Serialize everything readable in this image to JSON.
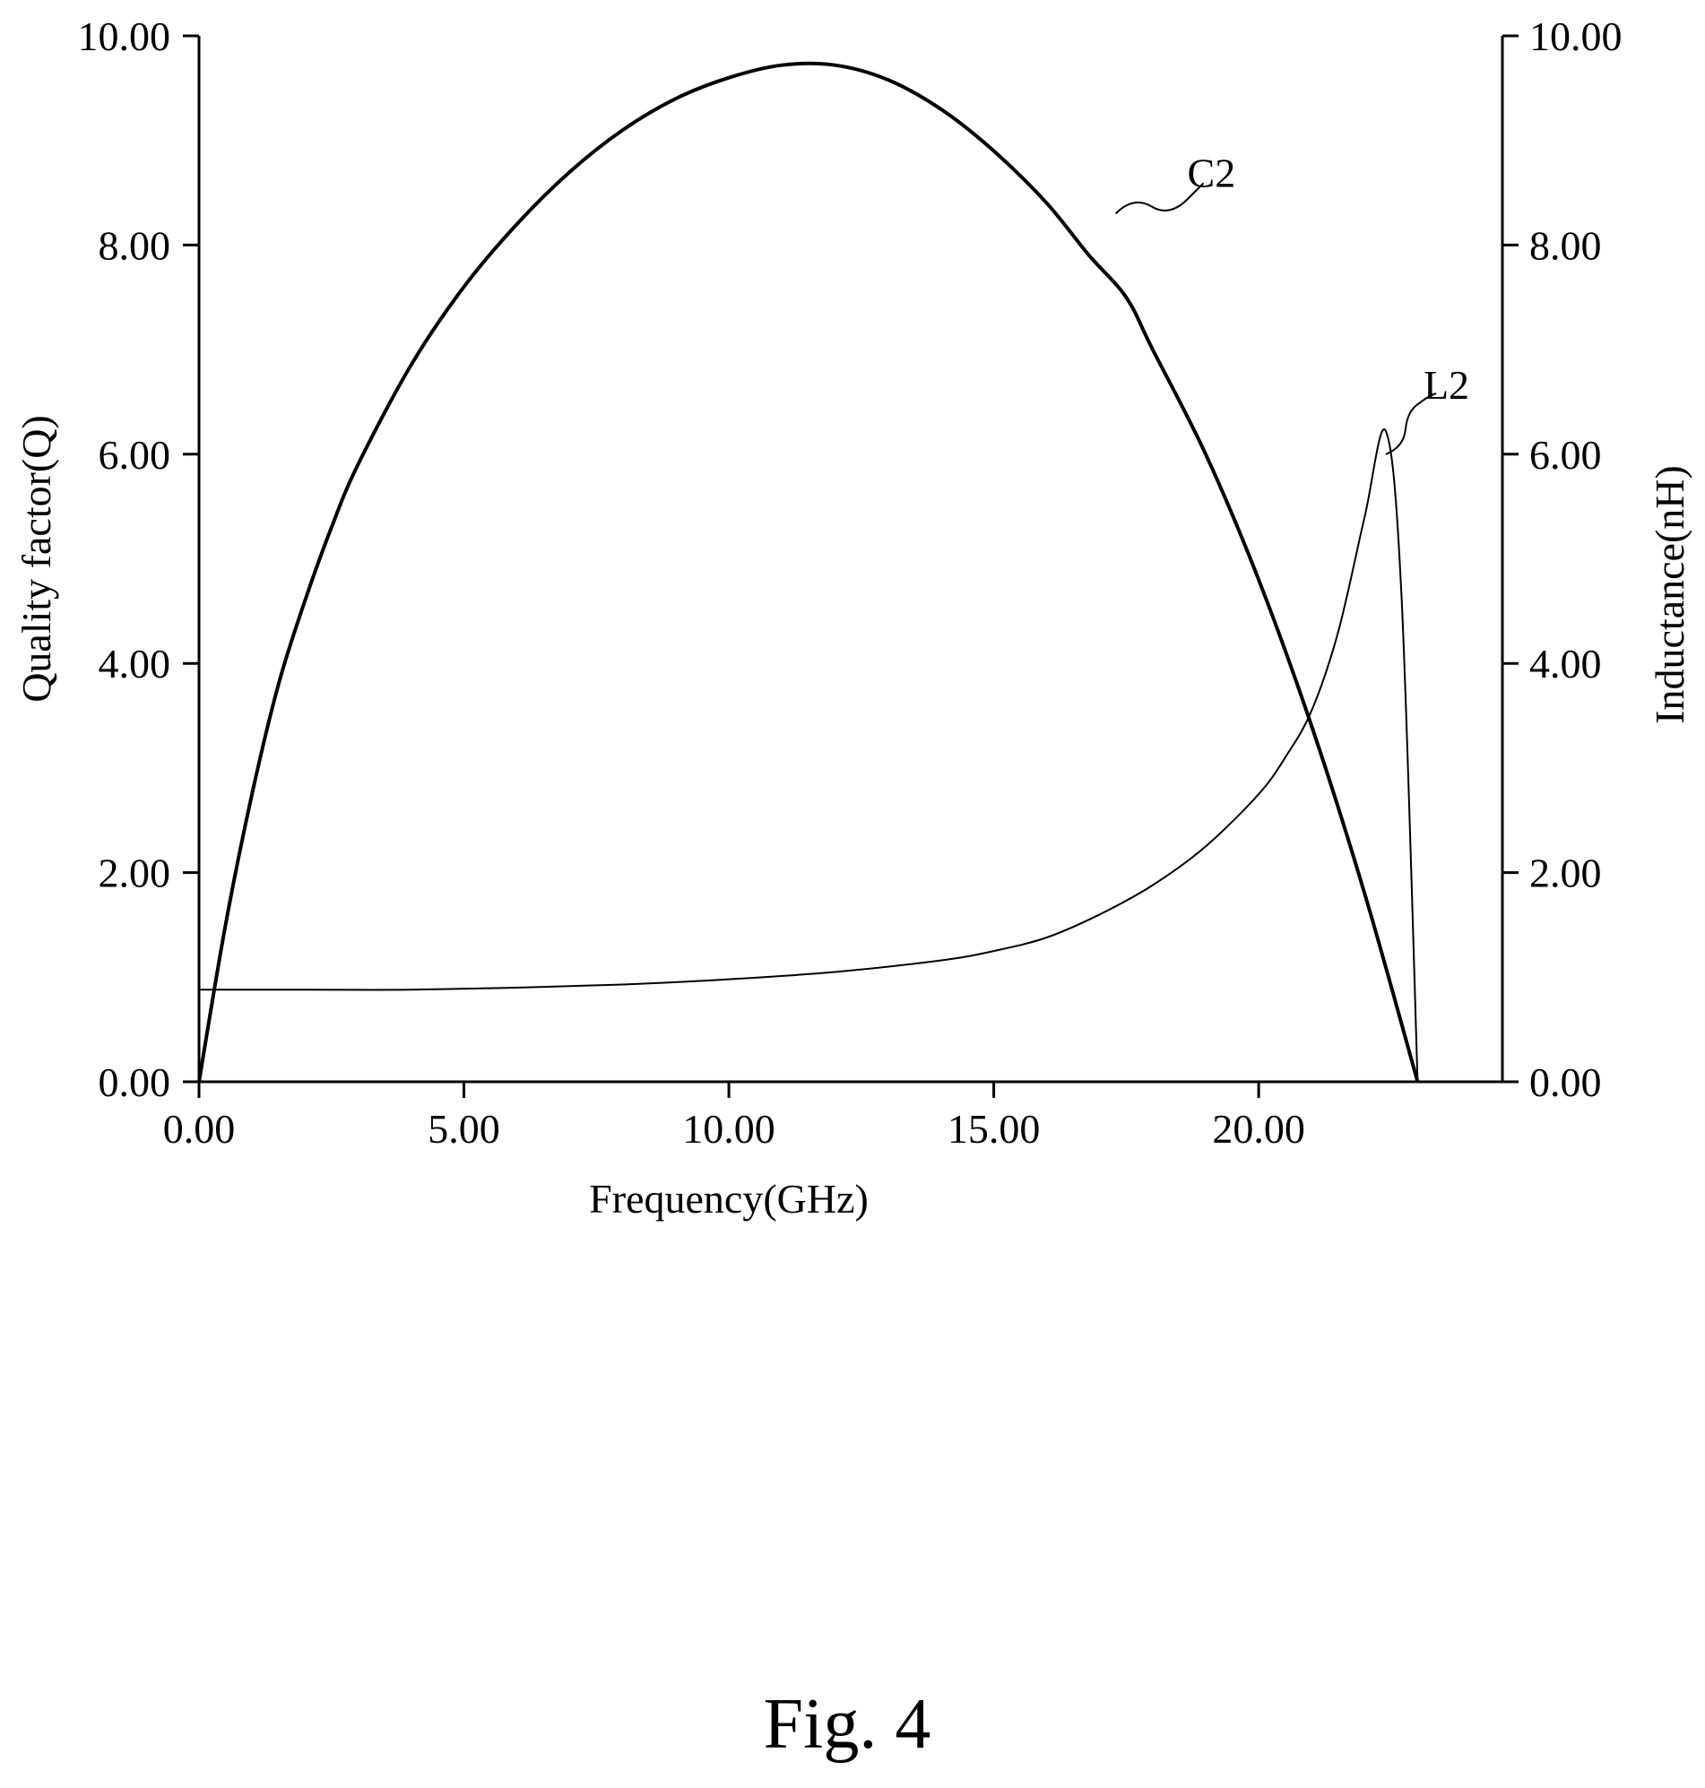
{
  "chart_data": {
    "type": "line",
    "xlabel": "Frequency(GHz)",
    "ylabel_left": "Quality factor(Q)",
    "ylabel_right": "Inductance(nH)",
    "xlim": [
      0,
      24.6
    ],
    "ylim_left": [
      0,
      10
    ],
    "ylim_right": [
      0,
      10
    ],
    "x_ticks": [
      "0.00",
      "5.00",
      "10.00",
      "15.00",
      "20.00"
    ],
    "y_ticks_left": [
      "0.00",
      "2.00",
      "4.00",
      "6.00",
      "8.00",
      "10.00"
    ],
    "y_ticks_right": [
      "0.00",
      "2.00",
      "4.00",
      "6.00",
      "8.00",
      "10.00"
    ],
    "grid": false,
    "legend": "none",
    "series": [
      {
        "name": "C2",
        "axis": "left",
        "x": [
          0,
          0.5,
          1,
          1.5,
          2,
          2.5,
          3,
          4,
          5,
          6,
          7,
          8,
          9,
          10,
          11,
          12,
          13,
          14,
          15,
          16,
          16.8,
          17.5,
          18,
          19,
          20,
          21,
          22,
          23
        ],
        "y": [
          0,
          1.5,
          2.75,
          3.8,
          4.6,
          5.3,
          5.9,
          6.85,
          7.6,
          8.2,
          8.7,
          9.1,
          9.4,
          9.6,
          9.72,
          9.72,
          9.58,
          9.3,
          8.9,
          8.4,
          7.9,
          7.5,
          7.0,
          6.0,
          4.8,
          3.4,
          1.8,
          0
        ]
      },
      {
        "name": "L2",
        "axis": "right",
        "x": [
          0,
          2,
          4,
          6,
          8,
          10,
          12,
          14,
          15,
          16,
          17,
          18,
          19,
          20,
          20.5,
          21,
          21.5,
          22,
          22.4,
          22.7,
          23
        ],
        "y": [
          0.88,
          0.88,
          0.88,
          0.9,
          0.93,
          0.98,
          1.05,
          1.16,
          1.25,
          1.38,
          1.6,
          1.88,
          2.25,
          2.75,
          3.1,
          3.55,
          4.3,
          5.4,
          6.22,
          4.6,
          0
        ]
      }
    ],
    "annotations": [
      {
        "text": "C2",
        "x": 17.3,
        "y": 8.3
      },
      {
        "text": "L2",
        "x": 22.4,
        "y": 6.0
      }
    ]
  },
  "caption": "Fig. 4"
}
